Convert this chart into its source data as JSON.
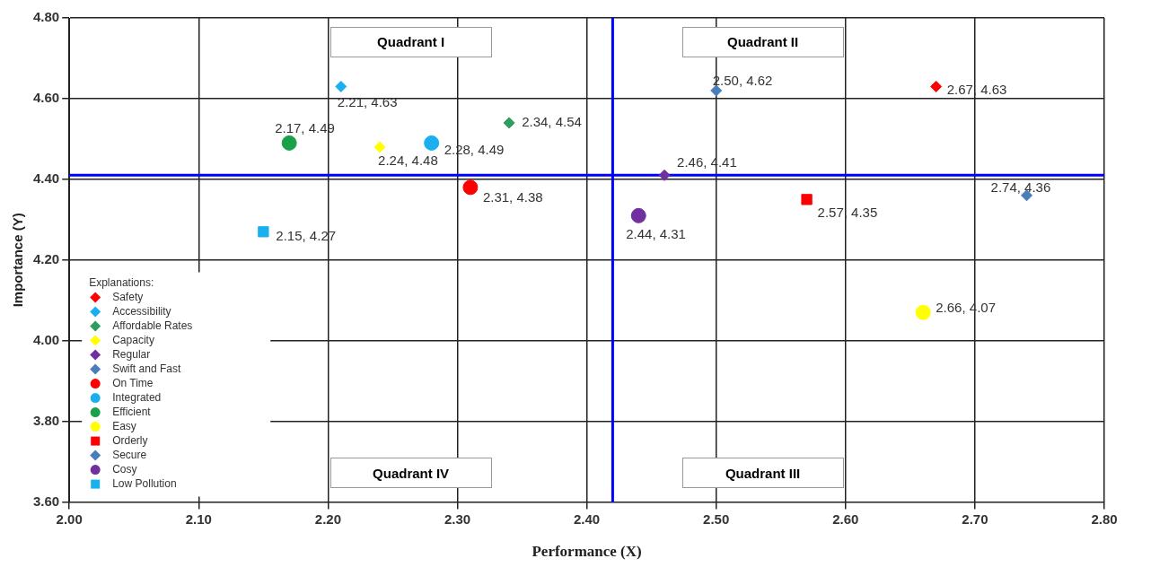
{
  "chart_data": {
    "type": "scatter",
    "xlabel": "Performance (X)",
    "ylabel": "Importance (Y)",
    "legend_title": "Explanations:",
    "legend": "bottom left",
    "grid": true,
    "xlim": [
      2.0,
      2.8
    ],
    "xticks": [
      {
        "value": 2.0,
        "label": "2.00"
      },
      {
        "value": 2.1,
        "label": "2.10"
      },
      {
        "value": 2.2,
        "label": "2.20"
      },
      {
        "value": 2.3,
        "label": "2.30"
      },
      {
        "value": 2.4,
        "label": "2.40"
      },
      {
        "value": 2.5,
        "label": "2.50"
      },
      {
        "value": 2.6,
        "label": "2.60"
      },
      {
        "value": 2.7,
        "label": "2.70"
      },
      {
        "value": 2.8,
        "label": "2.80"
      }
    ],
    "ylim": [
      3.6,
      4.8
    ],
    "yticks": [
      {
        "value": 3.6,
        "label": "3.60"
      },
      {
        "value": 3.8,
        "label": "3.80"
      },
      {
        "value": 4.0,
        "label": "4.00"
      },
      {
        "value": 4.2,
        "label": "4.20"
      },
      {
        "value": 4.4,
        "label": "4.40"
      },
      {
        "value": 4.6,
        "label": "4.60"
      },
      {
        "value": 4.8,
        "label": "4.80"
      }
    ],
    "ref_lines": [
      {
        "axis": "x",
        "value": 2.42,
        "color": "#0000ff"
      },
      {
        "axis": "y",
        "value": 4.41,
        "color": "#0000ff"
      }
    ],
    "annotations": [
      "Quadrant I",
      "Quadrant II",
      "Quadrant IV",
      "Quadrant III"
    ],
    "series": [
      {
        "name": "Safety",
        "color": "#ff0000",
        "marker": "diamond",
        "x": [
          2.67
        ],
        "values": [
          4.63
        ],
        "value_labels": [
          "2.67, 4.63"
        ]
      },
      {
        "name": "Accessibility",
        "color": "#1ab0f0",
        "marker": "diamond",
        "x": [
          2.21
        ],
        "values": [
          4.63
        ],
        "value_labels": [
          "2.21, 4.63"
        ]
      },
      {
        "name": "Affordable Rates",
        "color": "#2e9e5e",
        "marker": "diamond",
        "x": [
          2.34
        ],
        "values": [
          4.54
        ],
        "value_labels": [
          "2.34, 4.54"
        ]
      },
      {
        "name": "Capacity",
        "color": "#ffff00",
        "marker": "diamond",
        "x": [
          2.24
        ],
        "values": [
          4.48
        ],
        "value_labels": [
          "2.24, 4.48"
        ]
      },
      {
        "name": "Regular",
        "color": "#7030a0",
        "marker": "diamond",
        "x": [
          2.46
        ],
        "values": [
          4.41
        ],
        "value_labels": [
          "2.46, 4.41"
        ]
      },
      {
        "name": "Swift and Fast",
        "color": "#4a7ebb",
        "marker": "diamond",
        "x": [
          2.5
        ],
        "values": [
          4.62
        ],
        "value_labels": [
          "2.50, 4.62"
        ]
      },
      {
        "name": "On Time",
        "color": "#ff0000",
        "marker": "circle",
        "x": [
          2.31
        ],
        "values": [
          4.38
        ],
        "value_labels": [
          "2.31, 4.38"
        ]
      },
      {
        "name": "Integrated",
        "color": "#1ab0f0",
        "marker": "circle",
        "x": [
          2.28
        ],
        "values": [
          4.49
        ],
        "value_labels": [
          "2.28, 4.49"
        ]
      },
      {
        "name": "Efficient",
        "color": "#1aa04a",
        "marker": "circle",
        "x": [
          2.17
        ],
        "values": [
          4.49
        ],
        "value_labels": [
          "2.17, 4.49"
        ]
      },
      {
        "name": "Easy",
        "color": "#ffff00",
        "marker": "circle",
        "x": [
          2.66
        ],
        "values": [
          4.07
        ],
        "value_labels": [
          "2.66, 4.07"
        ]
      },
      {
        "name": "Orderly",
        "color": "#ff0000",
        "marker": "square",
        "x": [
          2.57
        ],
        "values": [
          4.35
        ],
        "value_labels": [
          "2.57, 4.35"
        ]
      },
      {
        "name": "Secure",
        "color": "#4a7ebb",
        "marker": "diamond",
        "x": [
          2.74
        ],
        "values": [
          4.36
        ],
        "value_labels": [
          "2.74, 4.36"
        ]
      },
      {
        "name": "Cosy",
        "color": "#7030a0",
        "marker": "circle",
        "x": [
          2.44
        ],
        "values": [
          4.31
        ],
        "value_labels": [
          "2.44, 4.31"
        ]
      },
      {
        "name": "Low Pollution",
        "color": "#1ab0f0",
        "marker": "square",
        "x": [
          2.15
        ],
        "values": [
          4.27
        ],
        "value_labels": [
          "2.15, 4.27"
        ]
      }
    ]
  }
}
